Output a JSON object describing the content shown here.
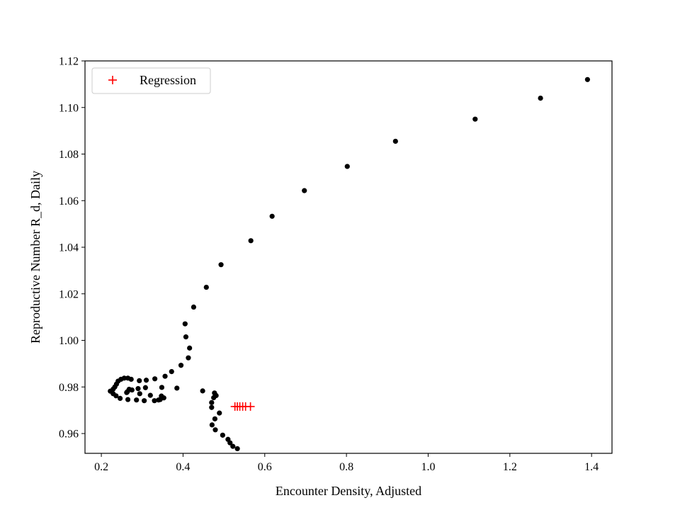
{
  "chart_data": {
    "type": "scatter",
    "xlabel": "Encounter Density, Adjusted",
    "ylabel": "Reproductive Number R_d, Daily",
    "xlim": [
      0.16,
      1.45
    ],
    "ylim": [
      0.9515,
      1.12
    ],
    "xticks": [
      0.2,
      0.4,
      0.6,
      0.8,
      1.0,
      1.2,
      1.4
    ],
    "xtick_labels": [
      "0.2",
      "0.4",
      "0.6",
      "0.8",
      "1.0",
      "1.2",
      "1.4"
    ],
    "yticks": [
      0.96,
      0.98,
      1.0,
      1.02,
      1.04,
      1.06,
      1.08,
      1.1,
      1.12
    ],
    "ytick_labels": [
      "0.96",
      "0.98",
      "1.00",
      "1.02",
      "1.04",
      "1.06",
      "1.08",
      "1.10",
      "1.12"
    ],
    "grid": false,
    "legend": {
      "position": "top-left",
      "entries": [
        "Regression"
      ]
    },
    "series": [
      {
        "name": "",
        "marker": "circle",
        "color": "#000000",
        "points": [
          [
            1.39,
            1.112
          ],
          [
            1.275,
            1.104
          ],
          [
            1.115,
            1.095
          ],
          [
            0.92,
            1.0855
          ],
          [
            0.802,
            1.0747
          ],
          [
            0.697,
            1.0643
          ],
          [
            0.618,
            1.0533
          ],
          [
            0.566,
            1.0428
          ],
          [
            0.493,
            1.0325
          ],
          [
            0.457,
            1.0228
          ],
          [
            0.426,
            1.0143
          ],
          [
            0.405,
            1.0071
          ],
          [
            0.407,
            1.0015
          ],
          [
            0.416,
            0.9967
          ],
          [
            0.413,
            0.9925
          ],
          [
            0.395,
            0.9893
          ],
          [
            0.372,
            0.9866
          ],
          [
            0.356,
            0.9846
          ],
          [
            0.331,
            0.9835
          ],
          [
            0.31,
            0.9829
          ],
          [
            0.293,
            0.9827
          ],
          [
            0.273,
            0.9833
          ],
          [
            0.265,
            0.9838
          ],
          [
            0.256,
            0.9838
          ],
          [
            0.248,
            0.9833
          ],
          [
            0.241,
            0.9825
          ],
          [
            0.237,
            0.9812
          ],
          [
            0.233,
            0.98
          ],
          [
            0.229,
            0.9791
          ],
          [
            0.222,
            0.9782
          ],
          [
            0.229,
            0.9771
          ],
          [
            0.236,
            0.9762
          ],
          [
            0.246,
            0.9751
          ],
          [
            0.265,
            0.9746
          ],
          [
            0.286,
            0.9744
          ],
          [
            0.305,
            0.9741
          ],
          [
            0.32,
            0.9764
          ],
          [
            0.33,
            0.9741
          ],
          [
            0.34,
            0.9744
          ],
          [
            0.347,
            0.9761
          ],
          [
            0.353,
            0.9753
          ],
          [
            0.344,
            0.9746
          ],
          [
            0.348,
            0.9798
          ],
          [
            0.308,
            0.9797
          ],
          [
            0.29,
            0.9793
          ],
          [
            0.275,
            0.9787
          ],
          [
            0.264,
            0.978
          ],
          [
            0.262,
            0.9776
          ],
          [
            0.268,
            0.979
          ],
          [
            0.294,
            0.9771
          ],
          [
            0.385,
            0.9795
          ],
          [
            0.448,
            0.9783
          ],
          [
            0.477,
            0.9774
          ],
          [
            0.481,
            0.9763
          ],
          [
            0.475,
            0.9754
          ],
          [
            0.47,
            0.9733
          ],
          [
            0.47,
            0.9712
          ],
          [
            0.489,
            0.9688
          ],
          [
            0.478,
            0.9663
          ],
          [
            0.471,
            0.9637
          ],
          [
            0.479,
            0.9616
          ],
          [
            0.497,
            0.9593
          ],
          [
            0.51,
            0.9575
          ],
          [
            0.515,
            0.956
          ],
          [
            0.522,
            0.9545
          ],
          [
            0.533,
            0.9535
          ]
        ]
      },
      {
        "name": "Regression",
        "marker": "plus",
        "color": "#ff0000",
        "points": [
          [
            0.527,
            0.9716
          ],
          [
            0.533,
            0.9716
          ],
          [
            0.539,
            0.9716
          ],
          [
            0.546,
            0.9716
          ],
          [
            0.553,
            0.9716
          ],
          [
            0.565,
            0.9716
          ]
        ]
      }
    ]
  }
}
